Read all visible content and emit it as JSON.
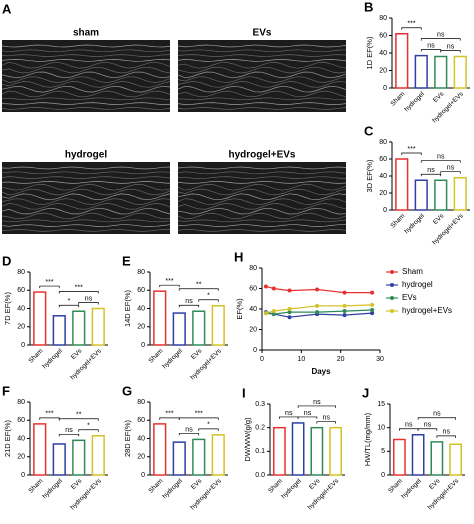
{
  "images": {
    "panel": "A",
    "views": [
      "sham",
      "EVs",
      "hydrogel",
      "hydrogel+EVs"
    ]
  },
  "chart_data": [
    {
      "type": "bar",
      "panel": "B",
      "ylabel": "1D EF(%)",
      "categories": [
        "Sham",
        "hydrogel",
        "EVs",
        "hydrogel+EVs"
      ],
      "values": [
        62,
        37,
        36,
        36
      ],
      "colors": [
        "#e8312e",
        "#2f3fa3",
        "#2e8b57",
        "#d4c229"
      ],
      "ylim": [
        0,
        80
      ],
      "yticks": [
        0,
        20,
        40,
        60,
        80
      ],
      "significance": [
        "***",
        "ns",
        "ns",
        "ns"
      ]
    },
    {
      "type": "bar",
      "panel": "C",
      "ylabel": "3D EF(%)",
      "categories": [
        "Sham",
        "hydrogel",
        "EVs",
        "hydrogel+EVs"
      ],
      "values": [
        60,
        35,
        35,
        38
      ],
      "colors": [
        "#e8312e",
        "#2f3fa3",
        "#2e8b57",
        "#d4c229"
      ],
      "ylim": [
        0,
        80
      ],
      "yticks": [
        0,
        20,
        40,
        60,
        80
      ],
      "significance": [
        "***",
        "ns",
        "ns",
        "ns"
      ]
    },
    {
      "type": "bar",
      "panel": "D",
      "ylabel": "7D EF(%)",
      "categories": [
        "Sham",
        "hydrogel",
        "EVs",
        "hydrogel+EVs"
      ],
      "values": [
        58,
        32,
        37,
        40
      ],
      "colors": [
        "#e8312e",
        "#2f3fa3",
        "#2e8b57",
        "#d4c229"
      ],
      "ylim": [
        0,
        80
      ],
      "yticks": [
        0,
        20,
        40,
        60,
        80
      ],
      "significance": [
        "***",
        "*",
        "ns",
        "***"
      ]
    },
    {
      "type": "bar",
      "panel": "E",
      "ylabel": "14D EF(%)",
      "categories": [
        "Sham",
        "hydrogel",
        "EVs",
        "hydrogel+EVs"
      ],
      "values": [
        59,
        35,
        37,
        43
      ],
      "colors": [
        "#e8312e",
        "#2f3fa3",
        "#2e8b57",
        "#d4c229"
      ],
      "ylim": [
        0,
        80
      ],
      "yticks": [
        0,
        20,
        40,
        60,
        80
      ],
      "significance": [
        "***",
        "ns",
        "*",
        "**"
      ]
    },
    {
      "type": "line",
      "panel": "H",
      "ylabel": "EF(%)",
      "xlabel": "Days",
      "x": [
        1,
        3,
        7,
        14,
        21,
        28
      ],
      "xlim": [
        0,
        30
      ],
      "xticks": [
        0,
        10,
        20,
        30
      ],
      "ylim": [
        0,
        80
      ],
      "yticks": [
        0,
        20,
        40,
        60,
        80
      ],
      "series": [
        {
          "name": "Sham",
          "color": "#e8312e",
          "values": [
            62,
            60,
            58,
            59,
            56,
            56
          ]
        },
        {
          "name": "hydrogel",
          "color": "#2f3fa3",
          "values": [
            37,
            35,
            32,
            35,
            34,
            36
          ]
        },
        {
          "name": "EVs",
          "color": "#2e8b57",
          "values": [
            36,
            35,
            37,
            37,
            38,
            39
          ]
        },
        {
          "name": "hydrogel+EVs",
          "color": "#d4c229",
          "values": [
            36,
            38,
            40,
            43,
            43,
            44
          ]
        }
      ]
    },
    {
      "type": "bar",
      "panel": "F",
      "ylabel": "21D EF(%)",
      "categories": [
        "Sham",
        "hydrogel",
        "EVs",
        "hydrogel+EVs"
      ],
      "values": [
        56,
        34,
        38,
        43
      ],
      "colors": [
        "#e8312e",
        "#2f3fa3",
        "#2e8b57",
        "#d4c229"
      ],
      "ylim": [
        0,
        80
      ],
      "yticks": [
        0,
        20,
        40,
        60,
        80
      ],
      "significance": [
        "***",
        "ns",
        "*",
        "**"
      ]
    },
    {
      "type": "bar",
      "panel": "G",
      "ylabel": "28D EF(%)",
      "categories": [
        "Sham",
        "hydrogel",
        "EVs",
        "hydrogel+EVs"
      ],
      "values": [
        56,
        36,
        39,
        44
      ],
      "colors": [
        "#e8312e",
        "#2f3fa3",
        "#2e8b57",
        "#d4c229"
      ],
      "ylim": [
        0,
        80
      ],
      "yticks": [
        0,
        20,
        40,
        60,
        80
      ],
      "significance": [
        "***",
        "ns",
        "*",
        "***"
      ]
    },
    {
      "type": "bar",
      "panel": "I",
      "ylabel": "DW/WW(g/g)",
      "categories": [
        "Sham",
        "hydrogel",
        "EVs",
        "hydrogel+EVs"
      ],
      "values": [
        0.2,
        0.22,
        0.2,
        0.2
      ],
      "colors": [
        "#e8312e",
        "#2f3fa3",
        "#2e8b57",
        "#d4c229"
      ],
      "ylim": [
        0,
        0.3
      ],
      "yticks": [
        {
          "value": 0,
          "label": "0.0"
        },
        0.1,
        0.2,
        0.3
      ],
      "significance": [
        "ns",
        "ns",
        "ns",
        "ns"
      ]
    },
    {
      "type": "bar",
      "panel": "J",
      "ylabel": "HW/TL(mg/mm)",
      "categories": [
        "Sham",
        "hydrogel",
        "EVs",
        "hydrogel+EVs"
      ],
      "values": [
        7.5,
        8.5,
        7,
        6.5
      ],
      "colors": [
        "#e8312e",
        "#2f3fa3",
        "#2e8b57",
        "#d4c229"
      ],
      "ylim": [
        0,
        15
      ],
      "yticks": [
        0,
        5,
        10,
        15
      ],
      "significance": [
        "ns",
        "ns",
        "ns",
        "ns"
      ]
    }
  ]
}
